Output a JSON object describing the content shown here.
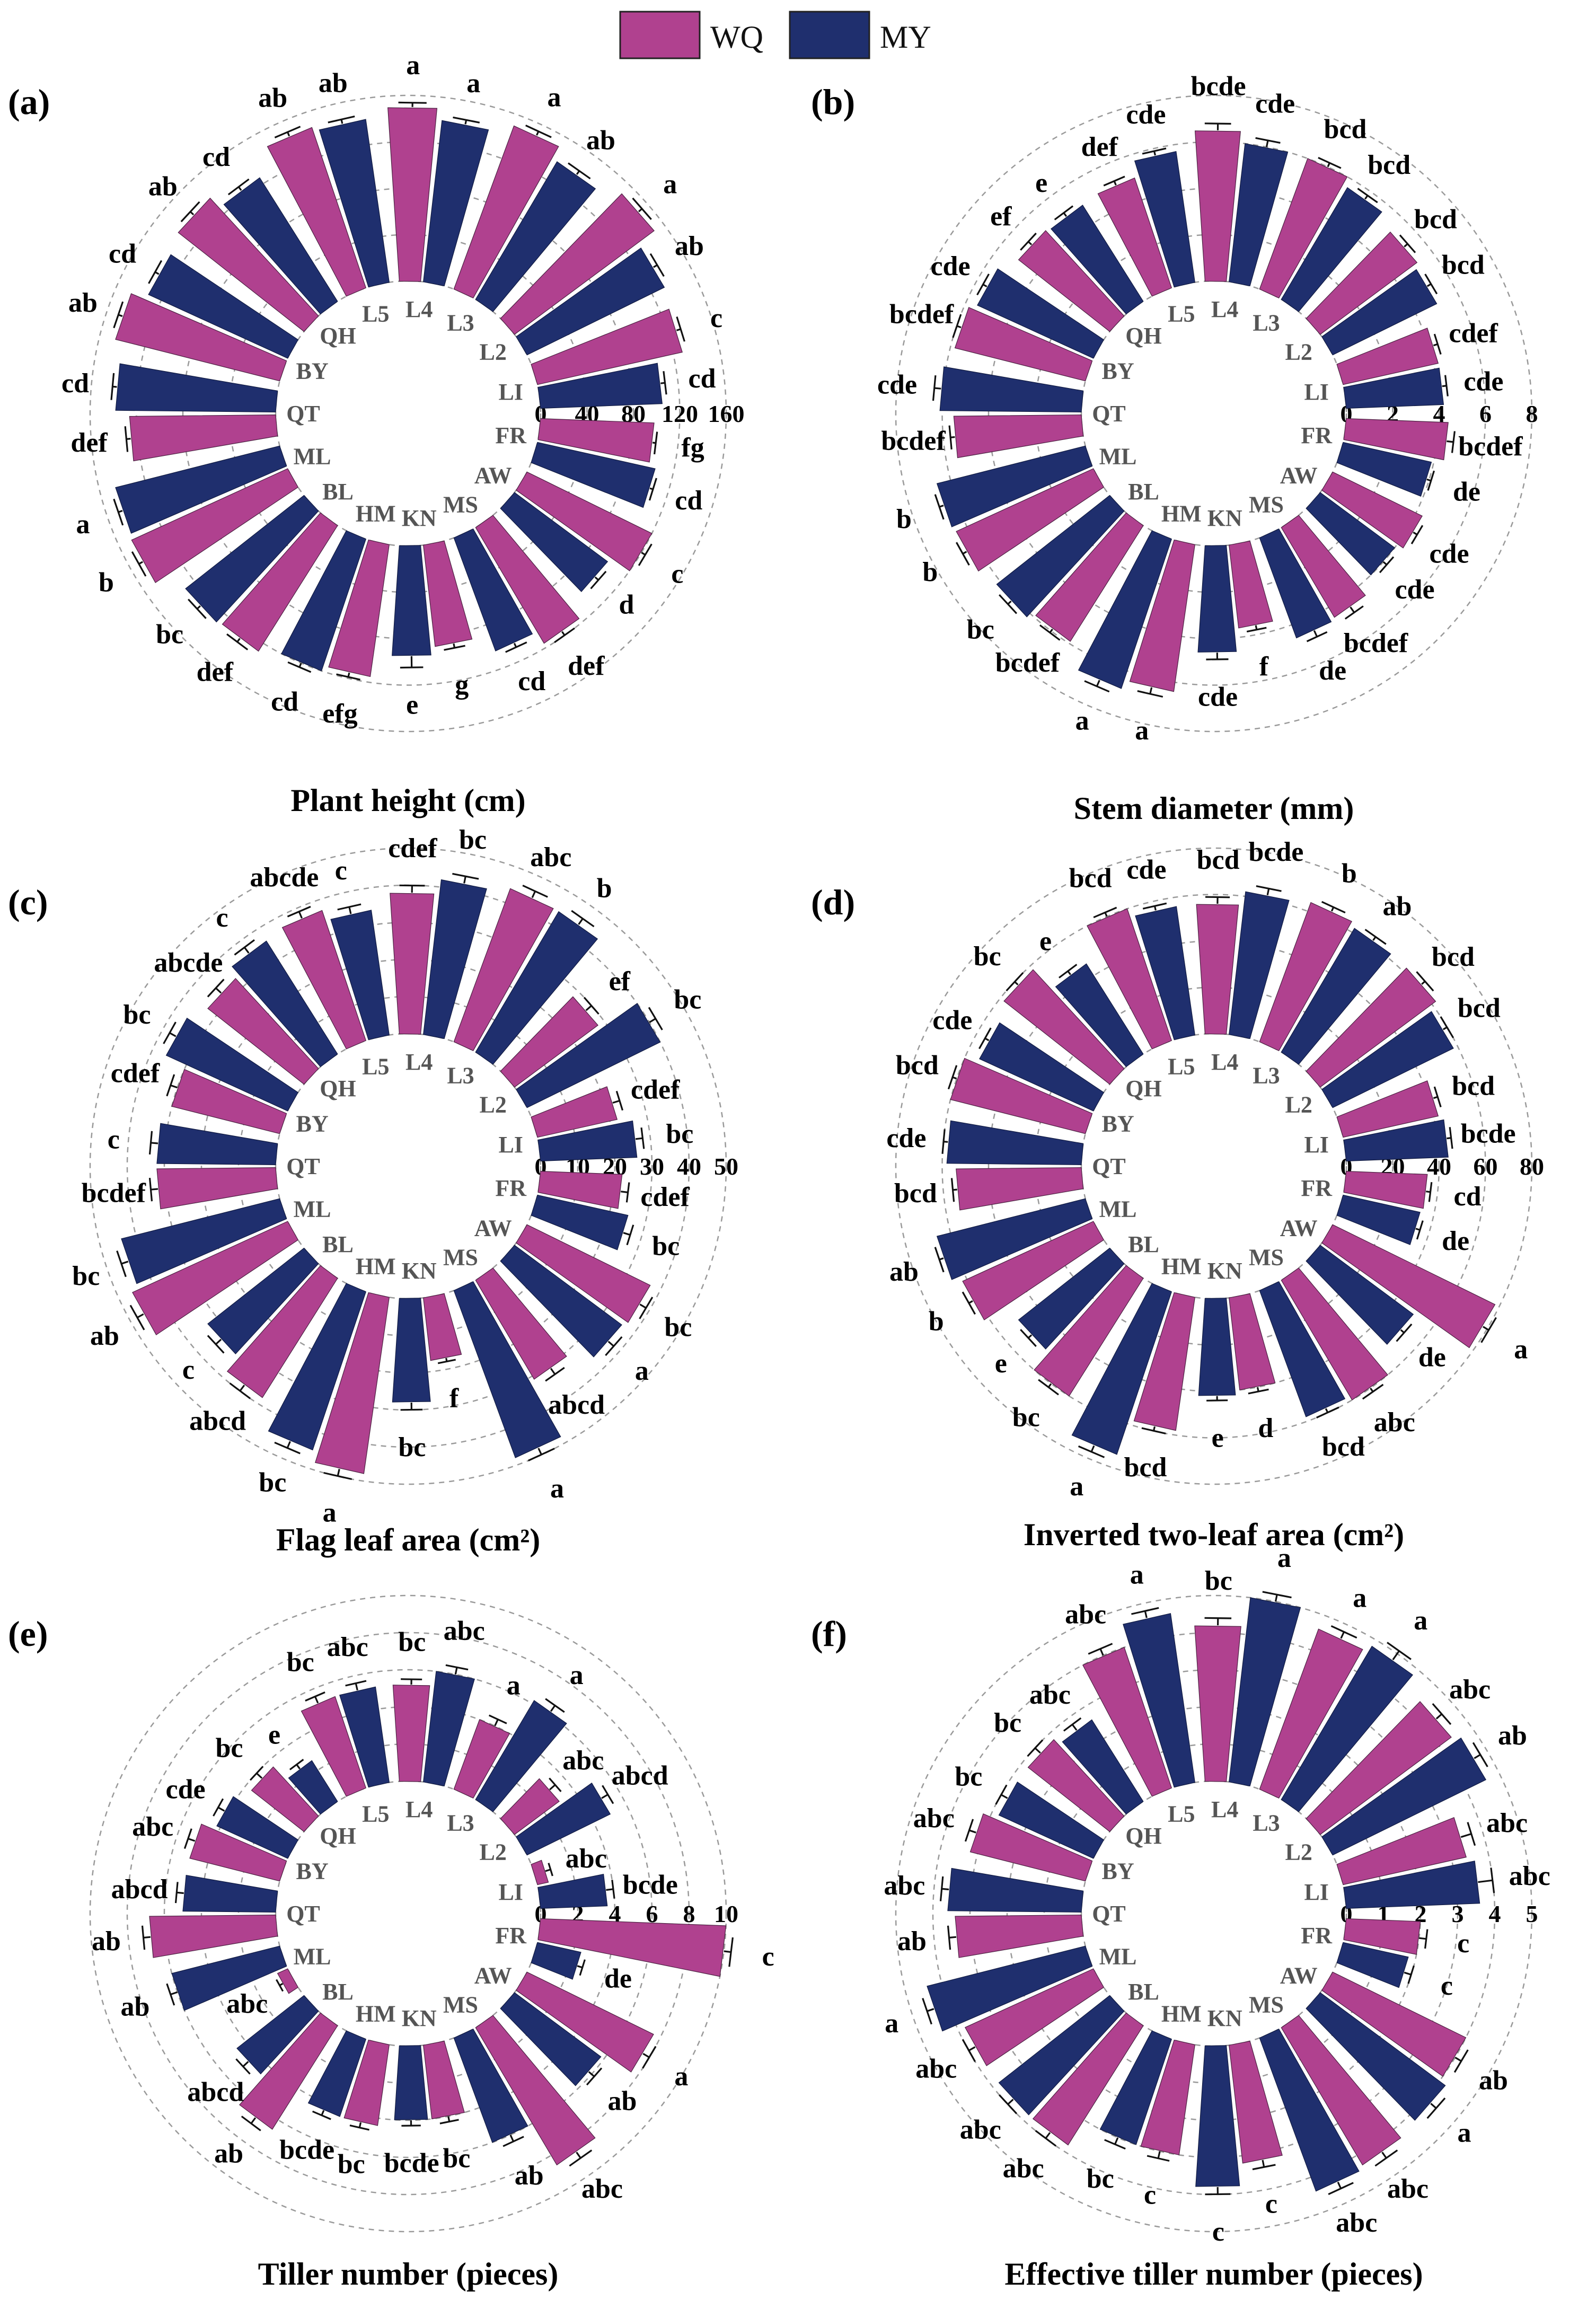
{
  "legend": [
    {
      "name": "WQ",
      "color": "#b0418f"
    },
    {
      "name": "MY",
      "color": "#1f2f6e"
    }
  ],
  "colors": {
    "WQ": "#b0418f",
    "MY": "#1f2f6e",
    "grid": "#9a9a9a"
  },
  "categories": [
    "L4",
    "L3",
    "L2",
    "LI",
    "FR",
    "AW",
    "MS",
    "KN",
    "HM",
    "BL",
    "ML",
    "QT",
    "BY",
    "QH",
    "L5"
  ],
  "chart_data": [
    {
      "type": "bar",
      "subtype": "circular-grouped-bar",
      "panel": "(a)",
      "title": "Plant height (cm)",
      "categories": [
        "L4",
        "L3",
        "L2",
        "LI",
        "FR",
        "AW",
        "MS",
        "KN",
        "HM",
        "BL",
        "ML",
        "QT",
        "BY",
        "QH",
        "L5"
      ],
      "ticks": [
        "0",
        "40",
        "80",
        "120",
        "160"
      ],
      "rmax": 160,
      "series": [
        {
          "name": "WQ",
          "values": [
            150,
            150,
            150,
            128,
            98,
            120,
            116,
            88,
            115,
            128,
            148,
            126,
            146,
            138,
            146
          ],
          "errors": [
            4,
            4,
            4,
            4,
            3,
            4,
            4,
            4,
            4,
            4,
            4,
            4,
            4,
            4,
            4
          ],
          "letters": [
            "a",
            "a",
            "a",
            "c",
            "fg",
            "c",
            "def",
            "g",
            "efg",
            "def",
            "b",
            "def",
            "ab",
            "ab",
            "ab"
          ]
        },
        {
          "name": "MY",
          "values": [
            140,
            138,
            132,
            105,
            104,
            100,
            104,
            95,
            120,
            130,
            146,
            138,
            132,
            126,
            142
          ],
          "errors": [
            4,
            4,
            4,
            4,
            3,
            4,
            4,
            10,
            4,
            4,
            4,
            4,
            4,
            4,
            4
          ],
          "letters": [
            "a",
            "ab",
            "ab",
            "cd",
            "cd",
            "d",
            "cd",
            "e",
            "cd",
            "bc",
            "a",
            "cd",
            "cd",
            "cd",
            "ab"
          ]
        }
      ]
    },
    {
      "type": "bar",
      "subtype": "circular-grouped-bar",
      "panel": "(b)",
      "title": "Stem diameter (mm)",
      "categories": [
        "L4",
        "L3",
        "L2",
        "LI",
        "FR",
        "AW",
        "MS",
        "KN",
        "HM",
        "BL",
        "ML",
        "QT",
        "BY",
        "QH",
        "L5"
      ],
      "ticks": [
        "0",
        "2",
        "4",
        "6",
        "8"
      ],
      "rmax": 8,
      "series": [
        {
          "name": "WQ",
          "values": [
            6.5,
            6.0,
            5.2,
            4.2,
            4.4,
            4.3,
            4.5,
            3.6,
            6.4,
            5.9,
            6.5,
            5.5,
            5.8,
            5.0,
            5.0
          ],
          "errors": [
            0.3,
            0.2,
            0.2,
            0.2,
            0.3,
            0.2,
            0.3,
            0.2,
            0.3,
            0.2,
            0.2,
            0.2,
            0.2,
            0.2,
            0.2
          ],
          "letters": [
            "bcde",
            "bcd",
            "bcd",
            "cdef",
            "bcdef",
            "cde",
            "bcdef",
            "f",
            "a",
            "bcdef",
            "b",
            "bcdef",
            "bcdef",
            "ef",
            "def"
          ]
        },
        {
          "name": "MY",
          "values": [
            6.0,
            5.6,
            5.0,
            4.2,
            3.9,
            4.0,
            4.6,
            4.6,
            6.8,
            6.2,
            6.6,
            6.1,
            5.5,
            4.9,
            5.7
          ],
          "errors": [
            0.3,
            0.2,
            0.2,
            0.2,
            0.2,
            0.2,
            0.3,
            0.3,
            0.3,
            0.2,
            0.2,
            0.3,
            0.2,
            0.2,
            0.2
          ],
          "letters": [
            "cde",
            "bcd",
            "bcd",
            "cde",
            "de",
            "cde",
            "de",
            "cde",
            "a",
            "bc",
            "b",
            "cde",
            "cde",
            "e",
            "cde"
          ]
        }
      ]
    },
    {
      "type": "bar",
      "subtype": "circular-grouped-bar",
      "panel": "(c)",
      "title": "Flag leaf area (cm²)",
      "categories": [
        "L4",
        "L3",
        "L2",
        "LI",
        "FR",
        "AW",
        "MS",
        "KN",
        "HM",
        "BL",
        "ML",
        "QT",
        "BY",
        "QH",
        "L5"
      ],
      "ticks": [
        "0",
        "10",
        "20",
        "30",
        "40",
        "50"
      ],
      "rmax": 50,
      "series": [
        {
          "name": "WQ",
          "values": [
            38,
            44,
            28,
            22,
            22,
            37,
            31,
            17,
            48,
            38,
            46,
            32,
            30,
            33,
            37
          ],
          "errors": [
            2,
            2,
            2,
            2,
            2,
            2,
            2,
            1,
            2,
            2,
            2,
            2,
            2,
            2,
            2
          ],
          "letters": [
            "cdef",
            "abc",
            "ef",
            "cdef",
            "cdef",
            "bc",
            "abcd",
            "f",
            "a",
            "abcd",
            "ab",
            "bcdef",
            "cdef",
            "abcde",
            "abcde"
          ]
        },
        {
          "name": "MY",
          "values": [
            42,
            44,
            40,
            26,
            25,
            36,
            48,
            28,
            45,
            33,
            44,
            32,
            36,
            36,
            34
          ],
          "errors": [
            2,
            2,
            2,
            2,
            2,
            2,
            2,
            2,
            2,
            2,
            2,
            2,
            2,
            2,
            2
          ],
          "letters": [
            "bc",
            "b",
            "bc",
            "bc",
            "bc",
            "a",
            "a",
            "bc",
            "bc",
            "c",
            "bc",
            "c",
            "bc",
            "c",
            "c"
          ]
        }
      ]
    },
    {
      "type": "bar",
      "subtype": "circular-grouped-bar",
      "panel": "(d)",
      "title": "Inverted two-leaf area (cm²)",
      "categories": [
        "L4",
        "L3",
        "L2",
        "LI",
        "FR",
        "AW",
        "MS",
        "KN",
        "HM",
        "BL",
        "ML",
        "QT",
        "BY",
        "QH",
        "L5"
      ],
      "ticks": [
        "0",
        "20",
        "40",
        "60",
        "80"
      ],
      "rmax": 80,
      "series": [
        {
          "name": "WQ",
          "values": [
            56,
            64,
            62,
            42,
            35,
            78,
            60,
            40,
            58,
            60,
            62,
            54,
            60,
            58,
            60
          ],
          "errors": [
            3,
            2,
            2,
            2,
            2,
            3,
            2,
            2,
            2,
            2,
            2,
            2,
            2,
            2,
            2
          ],
          "letters": [
            "bcd",
            "b",
            "bcd",
            "bcd",
            "cd",
            "a",
            "abc",
            "d",
            "bcd",
            "bc",
            "b",
            "bcd",
            "bcd",
            "bc",
            "bcd"
          ]
        },
        {
          "name": "MY",
          "values": [
            62,
            62,
            58,
            44,
            34,
            50,
            58,
            42,
            74,
            50,
            66,
            58,
            54,
            46,
            56
          ],
          "errors": [
            3,
            2,
            2,
            2,
            2,
            2,
            2,
            2,
            3,
            2,
            2,
            2,
            2,
            2,
            2
          ],
          "letters": [
            "bcde",
            "ab",
            "bcd",
            "bcde",
            "de",
            "de",
            "bcd",
            "e",
            "a",
            "e",
            "ab",
            "cde",
            "cde",
            "e",
            "cde"
          ]
        }
      ]
    },
    {
      "type": "bar",
      "subtype": "circular-grouped-bar",
      "panel": "(e)",
      "title": "Tiller number (pieces)",
      "categories": [
        "L4",
        "L3",
        "L2",
        "LI",
        "FR",
        "AW",
        "MS",
        "KN",
        "HM",
        "BL",
        "ML",
        "QT",
        "BY",
        "QH",
        "L5"
      ],
      "ticks": [
        "0",
        "2",
        "4",
        "6",
        "8",
        "10"
      ],
      "rmax": 10,
      "series": [
        {
          "name": "WQ",
          "values": [
            5.2,
            4.0,
            3.0,
            0.6,
            10.0,
            7.6,
            8.6,
            4.0,
            4.4,
            6.6,
            0.6,
            6.8,
            5.0,
            3.6,
            5.2
          ],
          "errors": [
            0.3,
            0.4,
            0.4,
            0.3,
            0.4,
            0.4,
            0.4,
            0.3,
            0.3,
            0.4,
            0.2,
            0.4,
            0.4,
            0.4,
            0.4
          ],
          "letters": [
            "bc",
            "a",
            "abc",
            "abc",
            "c",
            "a",
            "abc",
            "bc",
            "bc",
            "ab",
            "abc",
            "ab",
            "abc",
            "bc",
            "bc"
          ]
        },
        {
          "name": "MY",
          "values": [
            6.0,
            6.2,
            5.0,
            3.6,
            2.4,
            5.8,
            6.0,
            4.0,
            4.4,
            4.6,
            6.0,
            5.0,
            4.2,
            2.6,
            5.2
          ],
          "errors": [
            0.4,
            0.4,
            0.4,
            0.4,
            0.3,
            0.4,
            0.4,
            0.3,
            0.3,
            0.4,
            0.4,
            0.4,
            0.4,
            0.3,
            0.4
          ],
          "letters": [
            "abc",
            "a",
            "abcd",
            "bcde",
            "de",
            "ab",
            "ab",
            "bcde",
            "bcde",
            "abcd",
            "ab",
            "abcd",
            "cde",
            "e",
            "abc"
          ]
        }
      ]
    },
    {
      "type": "bar",
      "subtype": "circular-grouped-bar",
      "panel": "(f)",
      "title": "Effective tiller number (pieces)",
      "categories": [
        "L4",
        "L3",
        "L2",
        "LI",
        "FR",
        "AW",
        "MS",
        "KN",
        "HM",
        "BL",
        "ML",
        "QT",
        "BY",
        "QH",
        "L5"
      ],
      "ticks": [
        "0",
        "1",
        "2",
        "3",
        "4",
        "5"
      ],
      "rmax": 5,
      "series": [
        {
          "name": "WQ",
          "values": [
            4.2,
            4.6,
            4.4,
            3.4,
            2.0,
            4.0,
            4.3,
            3.2,
            3.0,
            3.8,
            3.8,
            3.4,
            3.2,
            2.8,
            4.0
          ],
          "errors": [
            0.2,
            0.2,
            0.2,
            0.3,
            0.2,
            0.2,
            0.2,
            0.2,
            0.2,
            0.2,
            0.2,
            0.2,
            0.2,
            0.2,
            0.2
          ],
          "letters": [
            "bc",
            "a",
            "abc",
            "abc",
            "c",
            "ab",
            "abc",
            "c",
            "c",
            "abc",
            "abc",
            "ab",
            "abc",
            "bc",
            "abc"
          ]
        },
        {
          "name": "MY",
          "values": [
            5.0,
            4.8,
            4.6,
            3.6,
            1.8,
            4.2,
            4.4,
            3.8,
            3.0,
            3.8,
            4.4,
            3.6,
            2.8,
            2.6,
            4.6
          ],
          "errors": [
            0.2,
            0.3,
            0.2,
            0.4,
            0.2,
            0.2,
            0.2,
            0.2,
            0.2,
            0.2,
            0.2,
            0.2,
            0.2,
            0.2,
            0.2
          ],
          "letters": [
            "a",
            "a",
            "ab",
            "abc",
            "c",
            "a",
            "abc",
            "c",
            "bc",
            "abc",
            "a",
            "abc",
            "bc",
            "abc",
            "a"
          ]
        }
      ]
    }
  ]
}
